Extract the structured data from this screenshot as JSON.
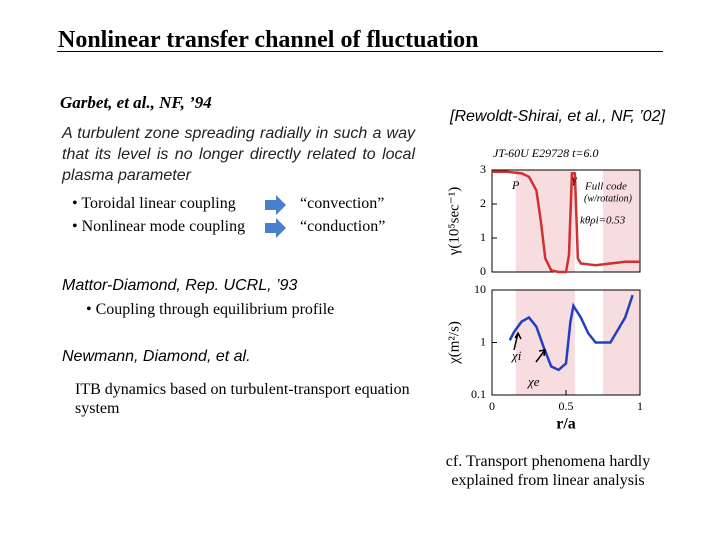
{
  "header": {
    "title": "Nonlinear transfer channel of fluctuation"
  },
  "left": {
    "ref1": "Garbet, et al., NF, ’94",
    "desc1": "A turbulent zone spreading radially in such a way that its level is no longer directly related to local plasma parameter",
    "bullets": [
      {
        "text": "• Toroidal linear coupling",
        "result": "“convection”"
      },
      {
        "text": "• Nonlinear mode coupling",
        "result": "“conduction”"
      }
    ],
    "ref2": "Mattor-Diamond, Rep. UCRL, ’93",
    "bullet2": "• Coupling through equilibrium profile",
    "ref3": "Newmann, Diamond, et al.",
    "desc3": "ITB dynamics based on turbulent-transport equation system"
  },
  "right": {
    "ref": "[Rewoldt-Shirai, et al., NF, ’02]",
    "note": "cf. Transport phenomena hardly explained from linear analysis"
  },
  "chart_data": [
    {
      "type": "line",
      "ylabel": "γ(10⁵sec⁻¹)",
      "annotations": [
        "JT-60U E29728 t=6.0",
        "P",
        "γ",
        "Full code",
        "(w/rotation)",
        "kθρi=0.53"
      ],
      "x": [
        0,
        0.1,
        0.2,
        0.25,
        0.3,
        0.33,
        0.36,
        0.4,
        0.45,
        0.5,
        0.52,
        0.54,
        0.56,
        0.58,
        0.6,
        0.7,
        0.8,
        0.9,
        1.0
      ],
      "series": [
        {
          "color": "#d03030",
          "values": [
            2.95,
            2.95,
            2.9,
            2.8,
            2.4,
            1.5,
            0.4,
            0.05,
            0,
            0,
            0.5,
            2.9,
            2.9,
            0.4,
            0.25,
            0.2,
            0.25,
            0.3,
            0.3
          ]
        }
      ],
      "xlim": [
        0,
        1
      ],
      "ylim": [
        0,
        3
      ],
      "yticks": [
        0,
        1,
        2,
        3
      ]
    },
    {
      "type": "line",
      "ylabel": "χ(m²/s)",
      "xlabel": "r/a",
      "log": true,
      "annotations": [
        "χi",
        "χe"
      ],
      "x": [
        0.12,
        0.15,
        0.2,
        0.25,
        0.3,
        0.35,
        0.4,
        0.45,
        0.5,
        0.53,
        0.55,
        0.6,
        0.65,
        0.7,
        0.8,
        0.9,
        0.95
      ],
      "series": [
        {
          "color": "#2040c0",
          "values": [
            1.1,
            1.6,
            2.5,
            3,
            2,
            0.8,
            0.35,
            0.3,
            0.4,
            2.5,
            5,
            3,
            1.5,
            1,
            1,
            3,
            8
          ]
        }
      ],
      "xlim": [
        0,
        1
      ],
      "ylim": [
        0.1,
        10
      ],
      "yticks": [
        0.1,
        1,
        10
      ],
      "xticks": [
        0,
        0.5,
        1
      ]
    }
  ]
}
